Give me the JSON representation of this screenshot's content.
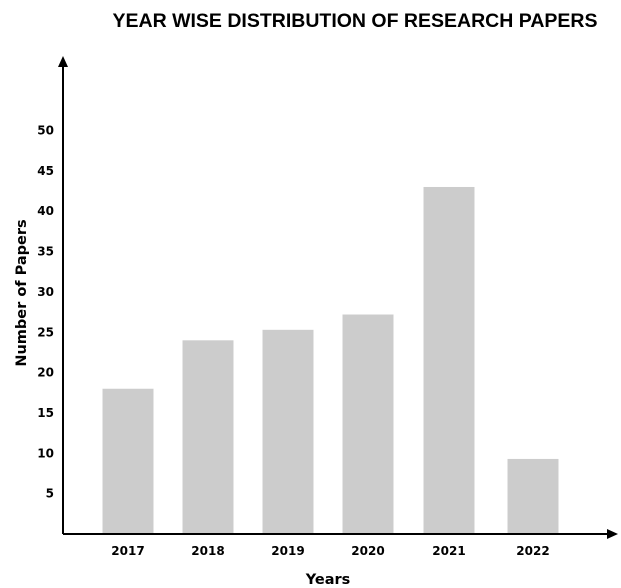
{
  "chart_data": {
    "type": "bar",
    "title": "YEAR WISE DISTRIBUTION OF RESEARCH PAPERS",
    "xlabel": "Years",
    "ylabel": "Number of Papers",
    "categories": [
      "2017",
      "2018",
      "2019",
      "2020",
      "2021",
      "2022"
    ],
    "values": [
      18,
      24,
      25.3,
      27.2,
      43,
      9.3
    ],
    "ylim": [
      0,
      50
    ],
    "yticks": [
      5,
      10,
      15,
      20,
      25,
      30,
      35,
      40,
      45,
      50
    ],
    "grid": false,
    "legend": "none",
    "bar_color": "#cccccc",
    "axis_color": "#000000"
  }
}
